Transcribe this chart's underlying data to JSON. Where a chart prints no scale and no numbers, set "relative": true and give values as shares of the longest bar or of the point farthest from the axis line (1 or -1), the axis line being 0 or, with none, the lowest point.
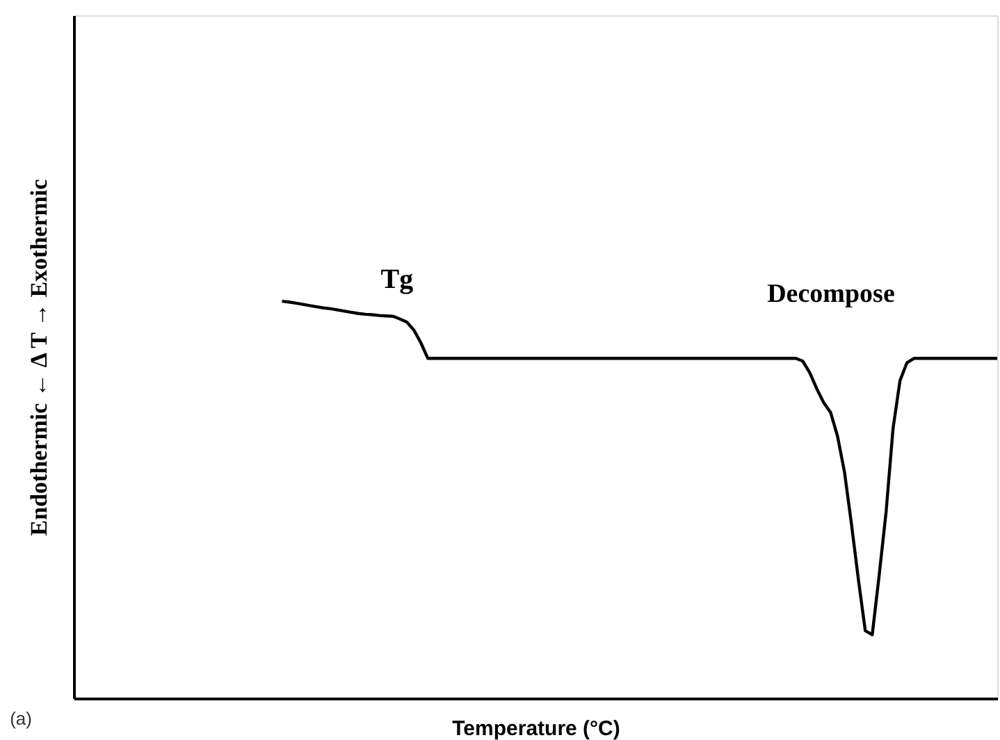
{
  "chart_data": {
    "type": "line",
    "relative": true,
    "xlabel": "Temperature (°C)",
    "ylabel": "Endothermic ←  Δ T  → Exothermic",
    "annotations": [
      "Tg",
      "Decompose",
      "(a)"
    ],
    "categories": [
      null,
      null,
      null,
      null,
      null,
      null,
      null,
      null,
      null,
      null,
      null,
      null,
      null,
      null,
      null,
      null,
      null,
      null,
      null,
      null,
      null,
      null,
      null,
      null,
      null,
      null,
      null,
      null,
      null,
      null,
      null,
      null,
      null,
      null,
      null,
      null,
      null,
      null,
      null,
      null,
      null,
      null,
      null,
      null,
      null,
      null,
      null,
      null,
      null,
      null,
      null,
      null,
      null,
      null,
      null,
      null,
      null,
      null,
      null,
      null,
      null,
      null,
      null,
      null,
      null,
      null,
      null,
      null,
      null,
      null,
      null,
      null,
      null,
      null,
      null,
      null,
      null,
      null,
      null,
      null,
      null,
      null,
      null,
      null,
      null,
      null,
      null,
      null,
      null,
      null,
      null,
      null,
      null,
      null,
      null,
      null,
      null,
      null,
      null,
      null,
      null,
      null,
      null,
      null,
      null,
      null,
      null,
      null,
      null,
      null,
      null,
      null,
      null,
      null,
      null,
      null,
      null,
      null,
      null,
      null,
      null,
      null,
      null,
      null,
      null,
      null,
      null,
      null,
      null,
      null,
      null,
      null,
      null,
      null
    ],
    "series": [
      {
        "color": "#000000",
        "values": [
          null,
          null,
          null,
          null,
          null,
          null,
          null,
          null,
          null,
          null,
          null,
          null,
          null,
          null,
          null,
          null,
          null,
          null,
          null,
          null,
          null,
          null,
          null,
          null,
          null,
          null,
          null,
          null,
          null,
          null,
          1.0,
          0.998,
          0.995,
          0.992,
          0.989,
          0.986,
          0.983,
          0.981,
          0.978,
          0.975,
          0.972,
          0.969,
          0.967,
          0.966,
          0.964,
          0.963,
          0.962,
          0.955,
          0.947,
          0.927,
          0.895,
          0.856,
          0.856,
          0.856,
          0.856,
          0.856,
          0.856,
          0.856,
          0.856,
          0.856,
          0.856,
          0.856,
          0.856,
          0.856,
          0.856,
          0.856,
          0.856,
          0.856,
          0.856,
          0.856,
          0.856,
          0.856,
          0.856,
          0.856,
          0.856,
          0.856,
          0.856,
          0.856,
          0.856,
          0.856,
          0.856,
          0.856,
          0.856,
          0.856,
          0.856,
          0.856,
          0.856,
          0.856,
          0.856,
          0.856,
          0.856,
          0.856,
          0.856,
          0.856,
          0.856,
          0.856,
          0.856,
          0.856,
          0.856,
          0.856,
          0.856,
          0.856,
          0.856,
          0.856,
          0.856,
          0.849,
          0.82,
          0.78,
          0.745,
          0.72,
          0.66,
          0.57,
          0.44,
          0.3,
          0.17,
          0.16,
          0.31,
          0.47,
          0.68,
          0.8,
          0.845,
          0.856,
          0.856,
          0.856,
          0.856,
          0.856,
          0.856,
          0.856,
          0.856,
          0.856,
          0.856,
          0.856,
          0.856,
          0.856
        ]
      }
    ]
  }
}
